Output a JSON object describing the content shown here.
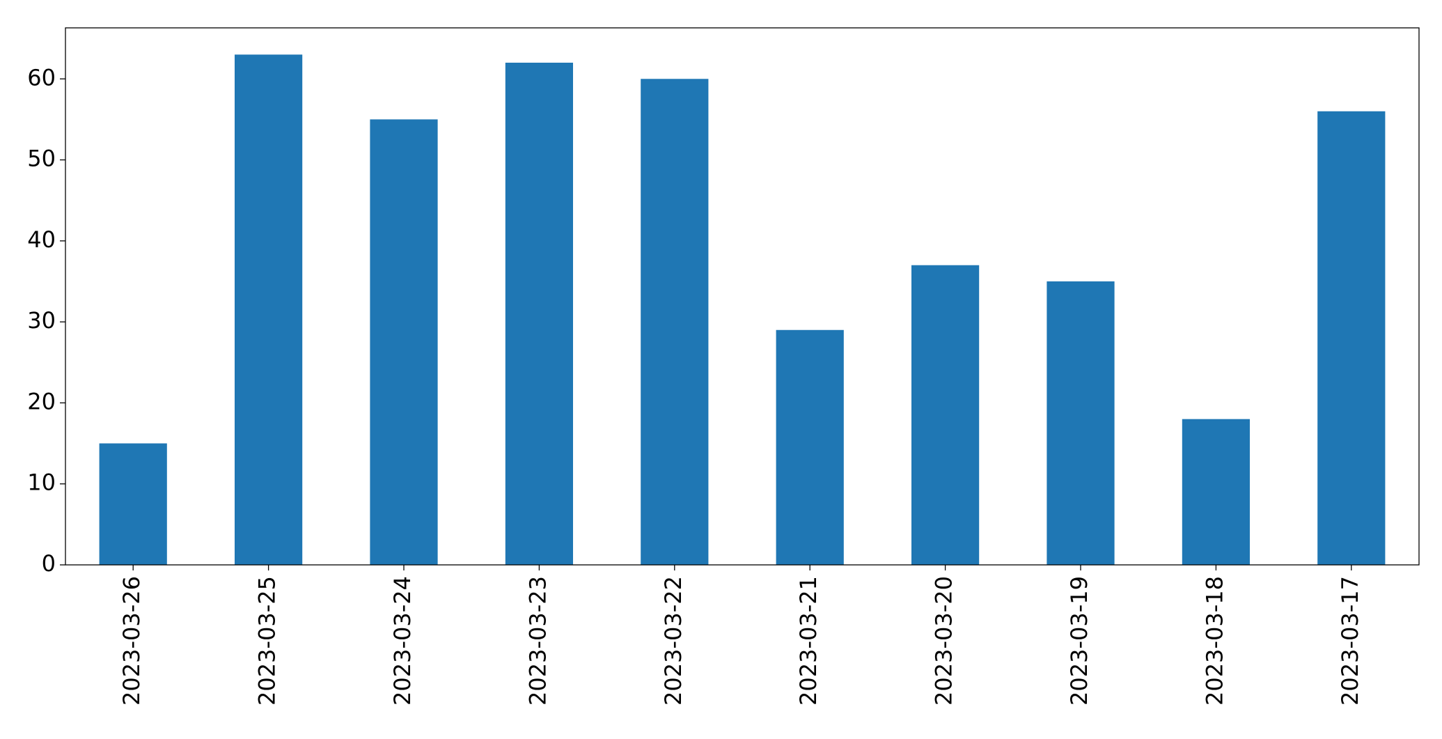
{
  "chart_data": {
    "type": "bar",
    "categories": [
      "2023-03-26",
      "2023-03-25",
      "2023-03-24",
      "2023-03-23",
      "2023-03-22",
      "2023-03-21",
      "2023-03-20",
      "2023-03-19",
      "2023-03-18",
      "2023-03-17"
    ],
    "values": [
      15,
      63,
      55,
      62,
      60,
      29,
      37,
      35,
      18,
      56
    ],
    "color": "#1f77b4",
    "ylim": [
      0,
      66.3
    ],
    "yticks": [
      0,
      10,
      20,
      30,
      40,
      50,
      60
    ],
    "grid": false
  }
}
